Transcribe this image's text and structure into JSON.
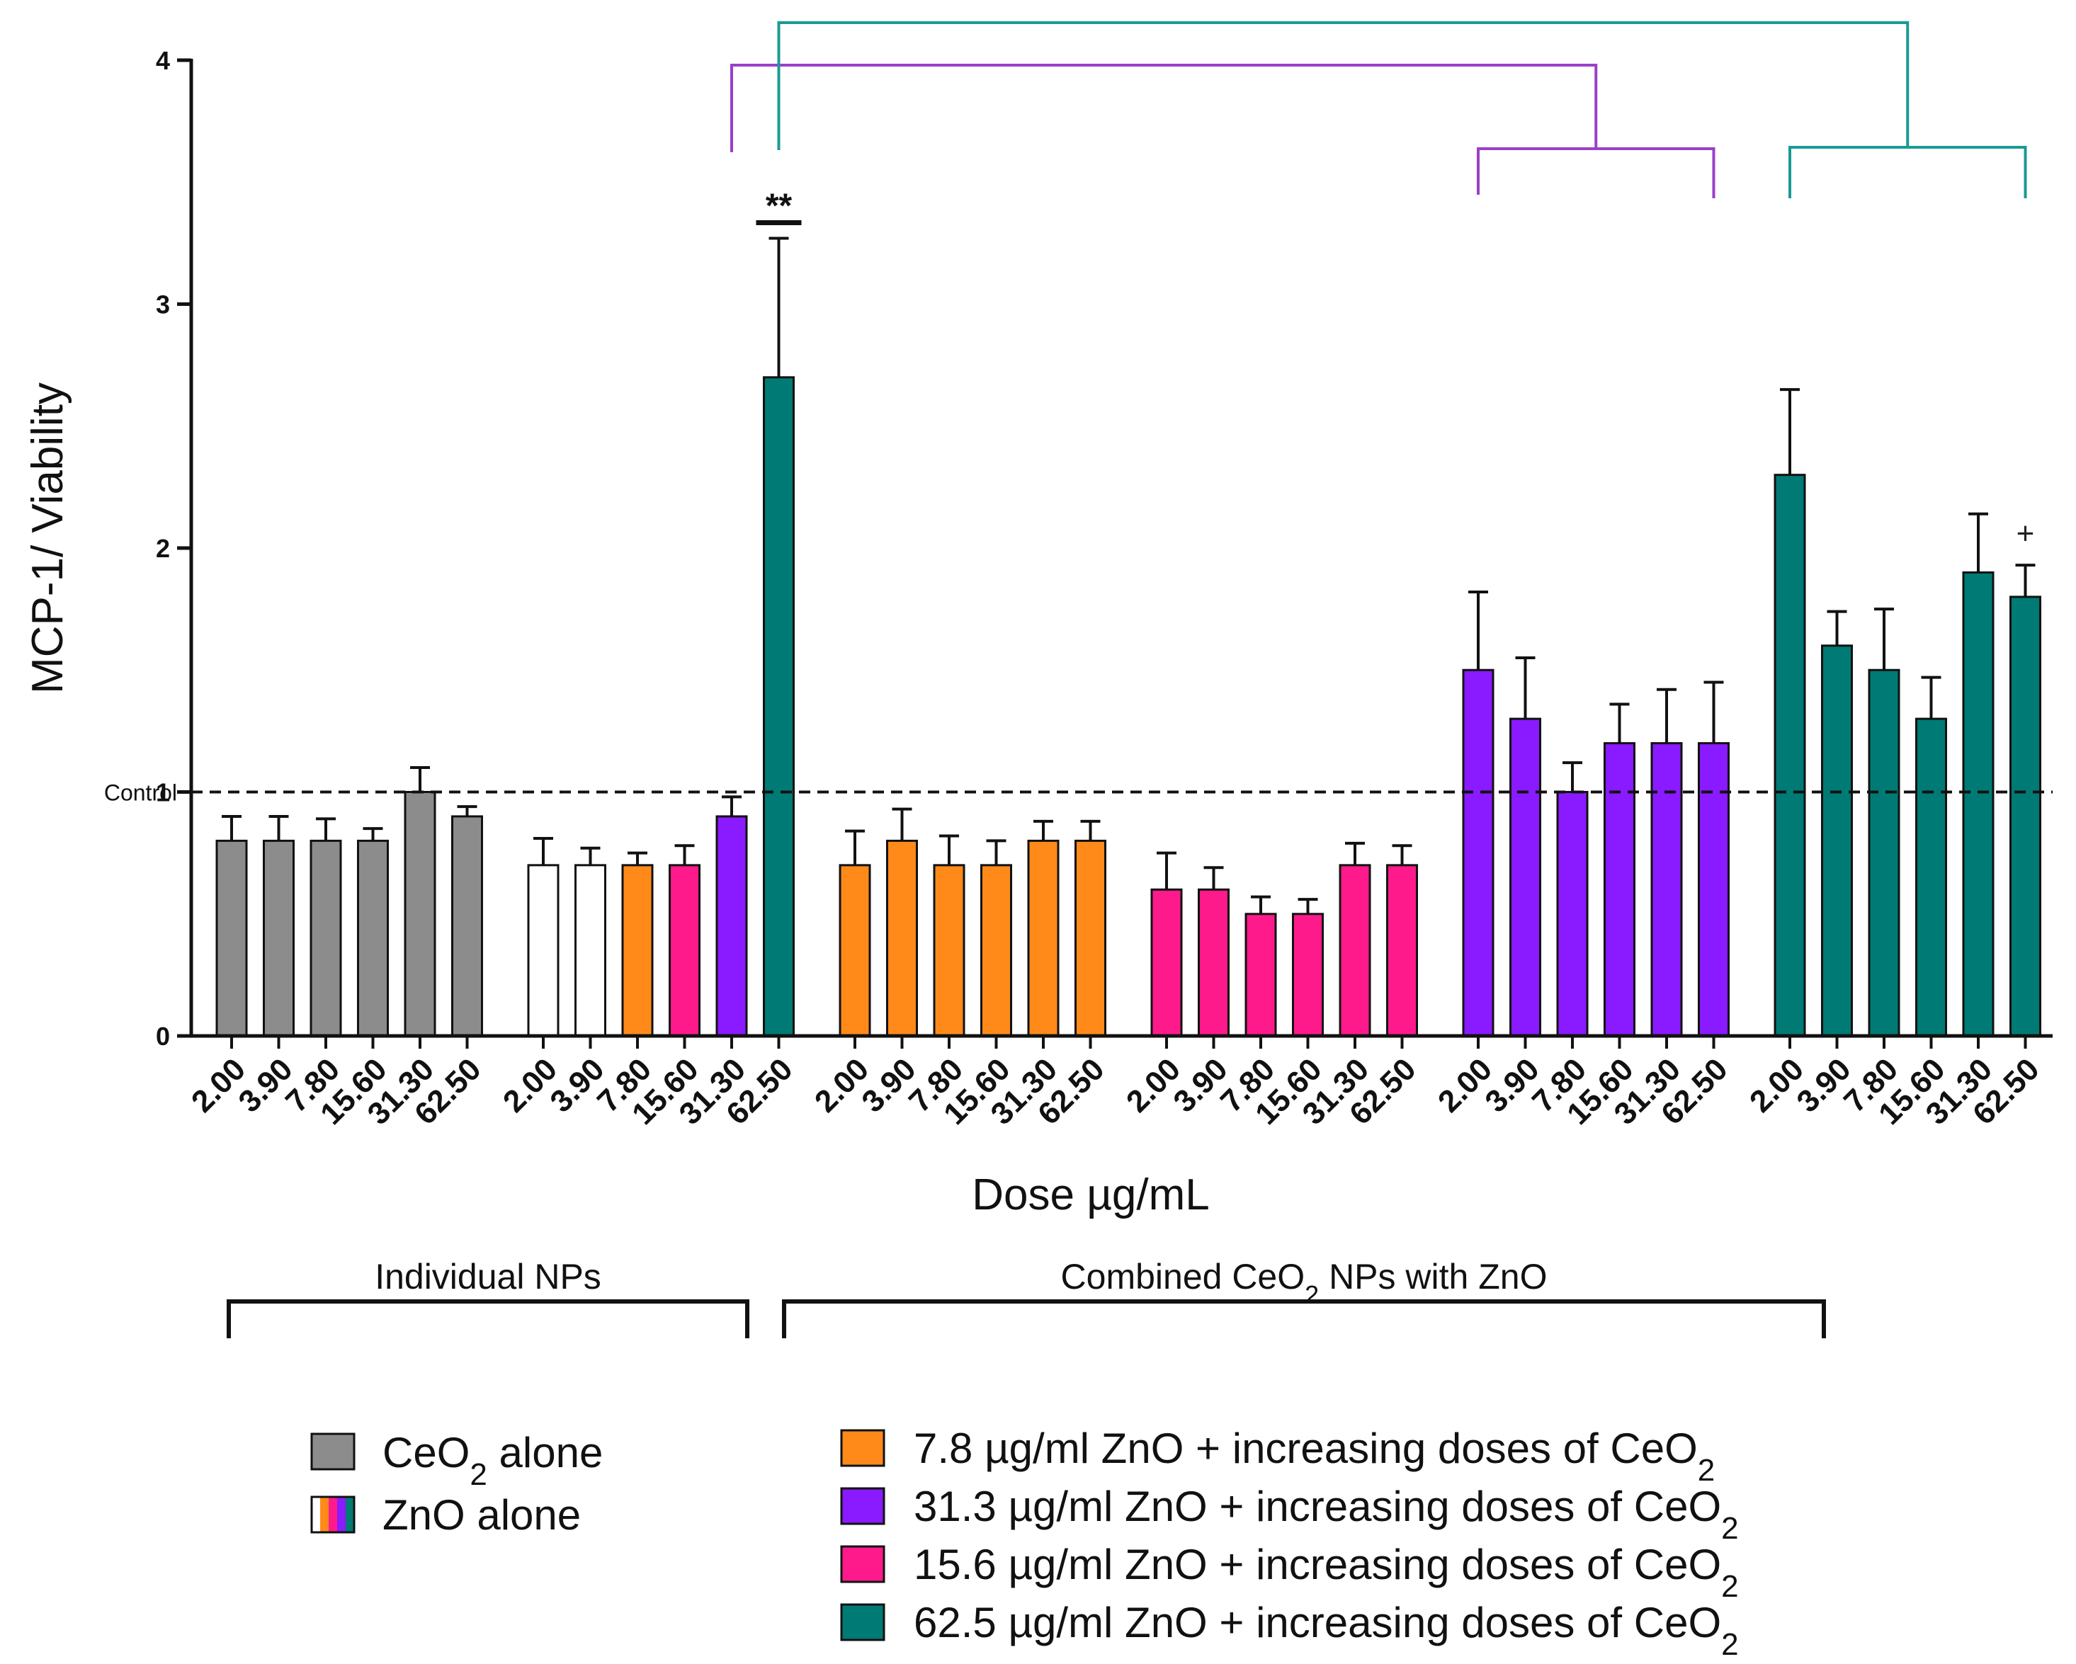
{
  "chart_data": {
    "type": "bar",
    "ylabel": "MCP-1/ Viability",
    "xlabel": "Dose µg/mL",
    "ylim": [
      0,
      4
    ],
    "yticks": [
      "0",
      "1",
      "2",
      "3",
      "4"
    ],
    "ytick_values": [
      0,
      1,
      2,
      3,
      4
    ],
    "control": {
      "label": "Control",
      "value": 1.0,
      "style": "dashed"
    },
    "groups": [
      {
        "name": "CeO2 alone",
        "categories": [
          "2.00",
          "3.90",
          "7.80",
          "15.60",
          "31.30",
          "62.50"
        ],
        "values": [
          0.8,
          0.8,
          0.8,
          0.8,
          1.0,
          0.9
        ],
        "errors": [
          0.1,
          0.1,
          0.09,
          0.05,
          0.1,
          0.04
        ],
        "colors": [
          "#8c8c8c",
          "#8c8c8c",
          "#8c8c8c",
          "#8c8c8c",
          "#8c8c8c",
          "#8c8c8c"
        ]
      },
      {
        "name": "ZnO alone",
        "categories": [
          "2.00",
          "3.90",
          "7.80",
          "15.60",
          "31.30",
          "62.50"
        ],
        "values": [
          0.7,
          0.7,
          0.7,
          0.7,
          0.9,
          2.7
        ],
        "errors": [
          0.11,
          0.07,
          0.05,
          0.08,
          0.08,
          0.57
        ],
        "colors": [
          "#ffffff",
          "#ffffff",
          "#ff8a1a",
          "#ff1a8c",
          "#8a1aff",
          "#007a74"
        ]
      },
      {
        "name": "7.8 µg/ml ZnO + increasing doses of CeO2",
        "categories": [
          "2.00",
          "3.90",
          "7.80",
          "15.60",
          "31.30",
          "62.50"
        ],
        "values": [
          0.7,
          0.8,
          0.7,
          0.7,
          0.8,
          0.8
        ],
        "errors": [
          0.14,
          0.13,
          0.12,
          0.1,
          0.08,
          0.08
        ],
        "colors": [
          "#ff8a1a",
          "#ff8a1a",
          "#ff8a1a",
          "#ff8a1a",
          "#ff8a1a",
          "#ff8a1a"
        ]
      },
      {
        "name": "15.6 µg/ml ZnO + increasing doses of CeO2",
        "categories": [
          "2.00",
          "3.90",
          "7.80",
          "15.60",
          "31.30",
          "62.50"
        ],
        "values": [
          0.6,
          0.6,
          0.5,
          0.5,
          0.7,
          0.7
        ],
        "errors": [
          0.15,
          0.09,
          0.07,
          0.06,
          0.09,
          0.08
        ],
        "colors": [
          "#ff1a8c",
          "#ff1a8c",
          "#ff1a8c",
          "#ff1a8c",
          "#ff1a8c",
          "#ff1a8c"
        ]
      },
      {
        "name": "31.3 µg/ml ZnO + increasing doses of CeO2",
        "categories": [
          "2.00",
          "3.90",
          "7.80",
          "15.60",
          "31.30",
          "62.50"
        ],
        "values": [
          1.5,
          1.3,
          1.0,
          1.2,
          1.2,
          1.2
        ],
        "errors": [
          0.32,
          0.25,
          0.12,
          0.16,
          0.22,
          0.25
        ],
        "colors": [
          "#8a1aff",
          "#8a1aff",
          "#8a1aff",
          "#8a1aff",
          "#8a1aff",
          "#8a1aff"
        ]
      },
      {
        "name": "62.5 µg/ml ZnO + increasing doses of CeO2",
        "categories": [
          "2.00",
          "3.90",
          "7.80",
          "15.60",
          "31.30",
          "62.50"
        ],
        "values": [
          2.3,
          1.6,
          1.5,
          1.3,
          1.9,
          1.8
        ],
        "errors": [
          0.35,
          0.14,
          0.25,
          0.17,
          0.24,
          0.13
        ],
        "colors": [
          "#007a74",
          "#007a74",
          "#007a74",
          "#007a74",
          "#007a74",
          "#007a74"
        ]
      }
    ],
    "annotations": {
      "significance": "**",
      "plus": "+"
    }
  },
  "group_labels": {
    "individual": "Individual NPs",
    "combined_pre": "Combined CeO",
    "combined_sub": "2",
    "combined_post": " NPs with ZnO"
  },
  "legend": {
    "left": [
      {
        "pre": "CeO",
        "sub": "2",
        "post": " alone",
        "color": "#8c8c8c"
      },
      {
        "pre": "ZnO alone",
        "sub": "",
        "post": "",
        "color": "multi"
      }
    ],
    "right": [
      {
        "pre": "7.8 µg/ml ZnO + increasing doses of CeO",
        "sub": "2",
        "color": "#ff8a1a"
      },
      {
        "pre": "31.3 µg/ml ZnO + increasing doses of CeO",
        "sub": "2",
        "color": "#8a1aff"
      },
      {
        "pre": "15.6 µg/ml ZnO + increasing doses of CeO",
        "sub": "2",
        "color": "#ff1a8c"
      },
      {
        "pre": "62.5 µg/ml ZnO + increasing doses of CeO",
        "sub": "2",
        "color": "#007a74"
      }
    ]
  },
  "colors": {
    "purple_bracket": "#9b3fc9",
    "teal_bracket": "#1a9a96"
  }
}
